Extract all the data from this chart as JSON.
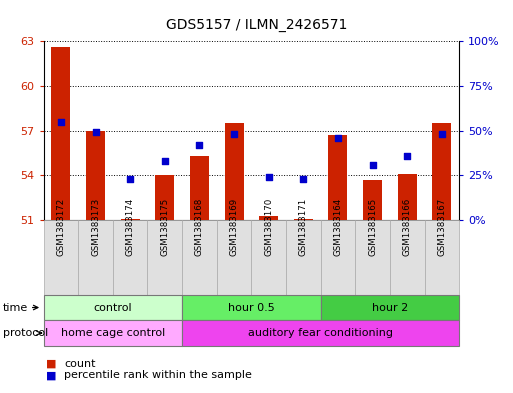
{
  "title": "GDS5157 / ILMN_2426571",
  "samples": [
    "GSM1383172",
    "GSM1383173",
    "GSM1383174",
    "GSM1383175",
    "GSM1383168",
    "GSM1383169",
    "GSM1383170",
    "GSM1383171",
    "GSM1383164",
    "GSM1383165",
    "GSM1383166",
    "GSM1383167"
  ],
  "count_values": [
    62.6,
    57.0,
    51.1,
    54.0,
    55.3,
    57.5,
    51.3,
    51.05,
    56.7,
    53.7,
    54.1,
    57.5
  ],
  "percentile_values": [
    55,
    49,
    23,
    33,
    42,
    48,
    24,
    23,
    46,
    31,
    36,
    48
  ],
  "ylim_left": [
    51,
    63
  ],
  "ylim_right": [
    0,
    100
  ],
  "yticks_left": [
    51,
    54,
    57,
    60,
    63
  ],
  "yticks_right": [
    0,
    25,
    50,
    75,
    100
  ],
  "ytick_labels_right": [
    "0%",
    "25%",
    "50%",
    "75%",
    "100%"
  ],
  "bar_color": "#cc2200",
  "dot_color": "#0000cc",
  "time_groups": [
    {
      "label": "control",
      "start": 0,
      "end": 4,
      "color": "#ccffcc"
    },
    {
      "label": "hour 0.5",
      "start": 4,
      "end": 8,
      "color": "#66ee66"
    },
    {
      "label": "hour 2",
      "start": 8,
      "end": 12,
      "color": "#44cc44"
    }
  ],
  "protocol_groups": [
    {
      "label": "home cage control",
      "start": 0,
      "end": 4,
      "color": "#ffaaff"
    },
    {
      "label": "auditory fear conditioning",
      "start": 4,
      "end": 12,
      "color": "#ee44ee"
    }
  ],
  "legend_count_label": "count",
  "legend_pct_label": "percentile rank within the sample",
  "bar_bottom": 51
}
